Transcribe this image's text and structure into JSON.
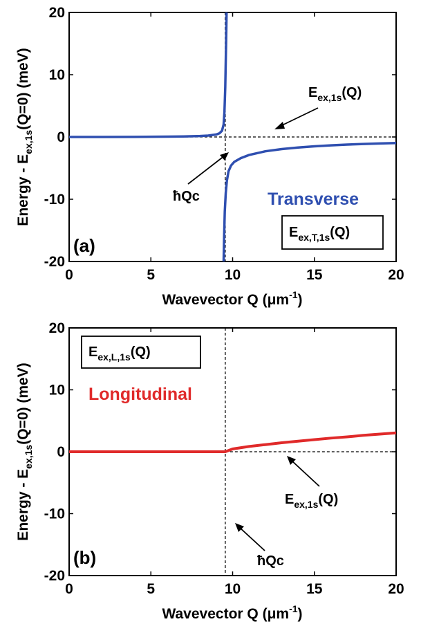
{
  "chart_data": [
    {
      "type": "line",
      "panel_label": "(a)",
      "xlabel_main": "Wavevector Q (",
      "xlabel_unit": "μm",
      "xlabel_sup": "-1",
      "xlabel_end": ")",
      "ylabel_main": "Energy - E",
      "ylabel_sub": "ex,1s",
      "ylabel_end": "(Q=0) (meV)",
      "xlim": [
        0,
        20
      ],
      "ylim": [
        -20,
        20
      ],
      "x_ticks": [
        "0",
        "5",
        "10",
        "15",
        "20"
      ],
      "y_ticks": [
        "20",
        "10",
        "0",
        "-10",
        "-20"
      ],
      "series": [
        {
          "name": "Transverse",
          "color": "#2f4fb0",
          "lower_branch_x": [
            0,
            2,
            4,
            6,
            7,
            8,
            8.5,
            9,
            9.2,
            9.35,
            9.45,
            9.5,
            9.55,
            9.6,
            9.63
          ],
          "lower_branch_y": [
            0,
            0,
            0.02,
            0.05,
            0.08,
            0.15,
            0.22,
            0.4,
            0.6,
            1.0,
            2.0,
            4.0,
            8.0,
            15,
            20
          ],
          "upper_branch_x": [
            9.45,
            9.48,
            9.52,
            9.58,
            9.65,
            9.75,
            9.9,
            10.1,
            10.5,
            11,
            12,
            13,
            14,
            15,
            16,
            17,
            18,
            19,
            20
          ],
          "upper_branch_y": [
            -20,
            -16,
            -12,
            -9,
            -7,
            -5.5,
            -4.6,
            -4.0,
            -3.4,
            -2.9,
            -2.3,
            -1.95,
            -1.7,
            -1.5,
            -1.35,
            -1.22,
            -1.12,
            -1.04,
            -0.97
          ]
        }
      ],
      "reference_line": {
        "y": 0,
        "style": "dashed"
      },
      "crossing_x": 9.55,
      "series_label": "Transverse",
      "legend_box": {
        "main": "E",
        "sub": "ex,T,1s",
        "end": "(Q)"
      },
      "annotations": [
        {
          "main": "E",
          "sub": "ex,1s",
          "end": "(Q)"
        },
        {
          "text": "ħQc"
        }
      ]
    },
    {
      "type": "line",
      "panel_label": "(b)",
      "xlabel_main": "Wavevector Q (",
      "xlabel_unit": "μm",
      "xlabel_sup": "-1",
      "xlabel_end": ")",
      "ylabel_main": "Energy - E",
      "ylabel_sub": "ex,1s",
      "ylabel_end": "(Q=0) (meV)",
      "xlim": [
        0,
        20
      ],
      "ylim": [
        -20,
        20
      ],
      "x_ticks": [
        "0",
        "5",
        "10",
        "15",
        "20"
      ],
      "y_ticks": [
        "20",
        "10",
        "0",
        "-10",
        "-20"
      ],
      "series": [
        {
          "name": "Longitudinal",
          "color": "#e02a2a",
          "x": [
            0,
            2,
            4,
            6,
            8,
            9,
            9.55,
            10,
            11,
            12,
            13,
            14,
            15,
            16,
            17,
            18,
            19,
            20
          ],
          "y": [
            0,
            0,
            0,
            0,
            0,
            0,
            0,
            0.45,
            0.85,
            1.15,
            1.45,
            1.7,
            1.95,
            2.2,
            2.4,
            2.65,
            2.85,
            3.05
          ]
        }
      ],
      "reference_line": {
        "y": 0,
        "style": "dashed",
        "from_x": 9.55
      },
      "crossing_x": 9.55,
      "series_label": "Longitudinal",
      "legend_box": {
        "main": "E",
        "sub": "ex,L,1s",
        "end": "(Q)"
      },
      "annotations": [
        {
          "main": "E",
          "sub": "ex,1s",
          "end": "(Q)"
        },
        {
          "text": "ħQc"
        }
      ]
    }
  ]
}
